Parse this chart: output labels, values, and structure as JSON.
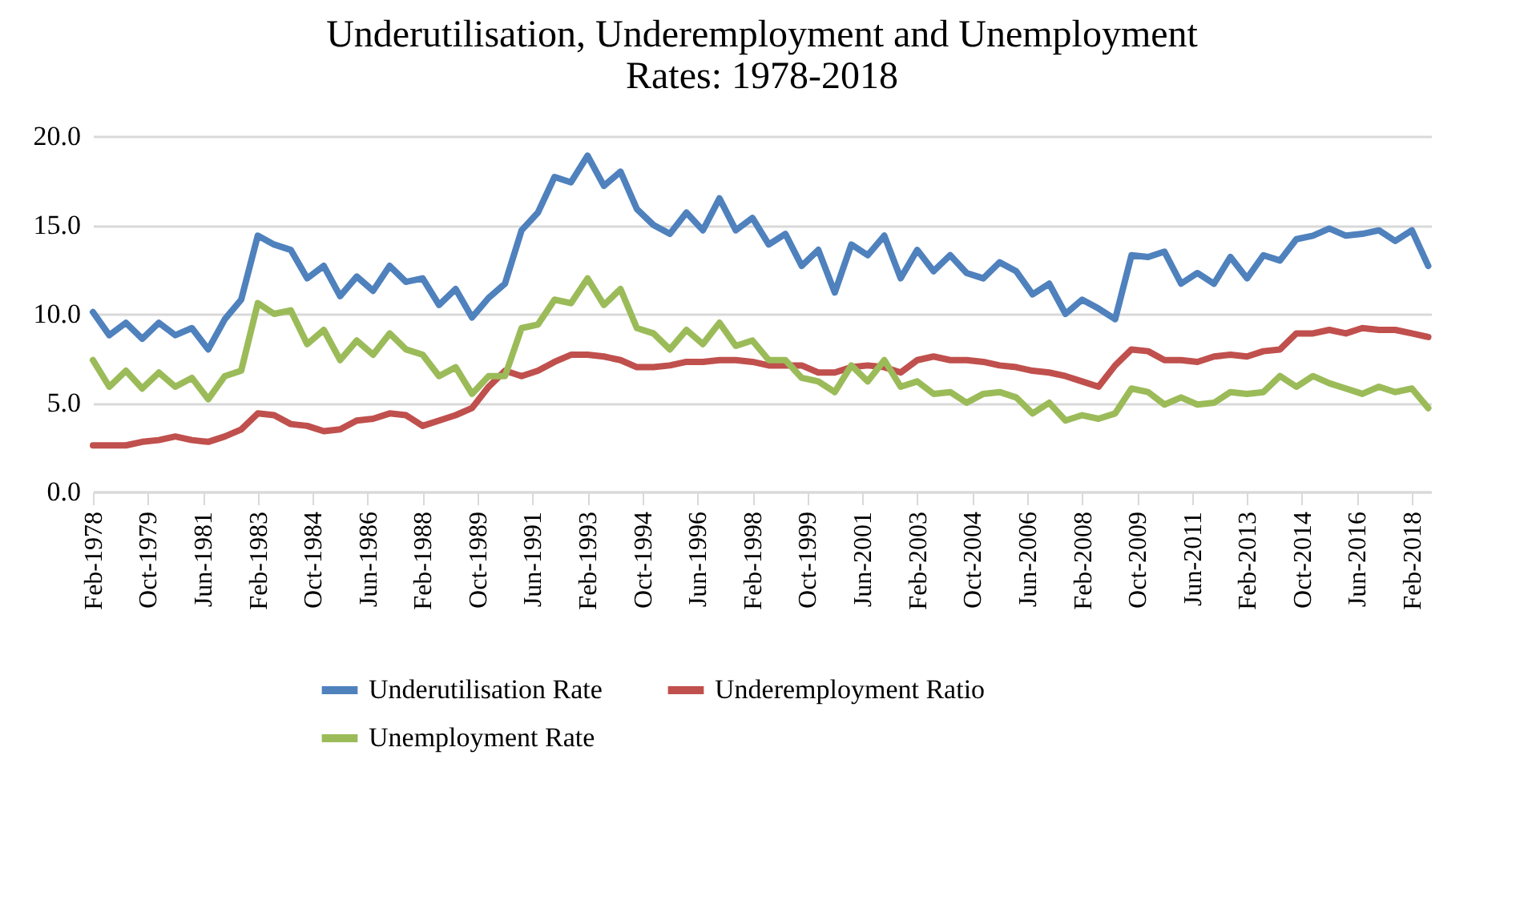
{
  "chart_data": {
    "type": "line",
    "title": "Underutilisation, Underemployment and Unemployment Rates: 1978-2018",
    "x": [
      "1978-02",
      "1978-08",
      "1979-02",
      "1979-08",
      "1980-02",
      "1980-08",
      "1981-02",
      "1981-08",
      "1982-02",
      "1982-08",
      "1983-02",
      "1983-08",
      "1984-02",
      "1984-08",
      "1985-02",
      "1985-08",
      "1986-02",
      "1986-08",
      "1987-02",
      "1987-08",
      "1988-02",
      "1988-08",
      "1989-02",
      "1989-08",
      "1990-02",
      "1990-08",
      "1991-02",
      "1991-08",
      "1992-02",
      "1992-08",
      "1993-02",
      "1993-08",
      "1994-02",
      "1994-08",
      "1995-02",
      "1995-08",
      "1996-02",
      "1996-08",
      "1997-02",
      "1997-08",
      "1998-02",
      "1998-08",
      "1999-02",
      "1999-08",
      "2000-02",
      "2000-08",
      "2001-02",
      "2001-08",
      "2002-02",
      "2002-08",
      "2003-02",
      "2003-08",
      "2004-02",
      "2004-08",
      "2005-02",
      "2005-08",
      "2006-02",
      "2006-08",
      "2007-02",
      "2007-08",
      "2008-02",
      "2008-08",
      "2009-02",
      "2009-08",
      "2010-02",
      "2010-08",
      "2011-02",
      "2011-08",
      "2012-02",
      "2012-08",
      "2013-02",
      "2013-08",
      "2014-02",
      "2014-08",
      "2015-02",
      "2015-08",
      "2016-02",
      "2016-08",
      "2017-02",
      "2017-08",
      "2018-02",
      "2018-08"
    ],
    "series": [
      {
        "name": "Underutilisation Rate",
        "color": "#4f81bd",
        "values": [
          10.1,
          8.8,
          9.5,
          8.6,
          9.5,
          8.8,
          9.2,
          8.0,
          9.7,
          10.8,
          14.4,
          13.9,
          13.6,
          12.0,
          12.7,
          11.0,
          12.1,
          11.3,
          12.7,
          11.8,
          12.0,
          10.5,
          11.4,
          9.8,
          10.9,
          11.7,
          14.7,
          15.7,
          17.7,
          17.4,
          18.9,
          17.2,
          18.0,
          15.9,
          15.0,
          14.5,
          15.7,
          14.7,
          16.5,
          14.7,
          15.4,
          13.9,
          14.5,
          12.7,
          13.6,
          11.2,
          13.9,
          13.3,
          14.4,
          12.0,
          13.6,
          12.4,
          13.3,
          12.3,
          12.0,
          12.9,
          12.4,
          11.1,
          11.7,
          10.0,
          10.8,
          10.3,
          9.7,
          13.3,
          13.2,
          13.5,
          11.7,
          12.3,
          11.7,
          13.2,
          12.0,
          13.3,
          13.0,
          14.2,
          14.4,
          14.8,
          14.4,
          14.5,
          14.7,
          14.1,
          14.7,
          12.7
        ]
      },
      {
        "name": "Underemployment Ratio",
        "color": "#c0504d",
        "values": [
          2.6,
          2.6,
          2.6,
          2.8,
          2.9,
          3.1,
          2.9,
          2.8,
          3.1,
          3.5,
          4.4,
          4.3,
          3.8,
          3.7,
          3.4,
          3.5,
          4.0,
          4.1,
          4.4,
          4.3,
          3.7,
          4.0,
          4.3,
          4.7,
          5.9,
          6.8,
          6.5,
          6.8,
          7.3,
          7.7,
          7.7,
          7.6,
          7.4,
          7.0,
          7.0,
          7.1,
          7.3,
          7.3,
          7.4,
          7.4,
          7.3,
          7.1,
          7.1,
          7.1,
          6.7,
          6.7,
          7.0,
          7.1,
          7.0,
          6.7,
          7.4,
          7.6,
          7.4,
          7.4,
          7.3,
          7.1,
          7.0,
          6.8,
          6.7,
          6.5,
          6.2,
          5.9,
          7.1,
          8.0,
          7.9,
          7.4,
          7.4,
          7.3,
          7.6,
          7.7,
          7.6,
          7.9,
          8.0,
          8.9,
          8.9,
          9.1,
          8.9,
          9.2,
          9.1,
          9.1,
          8.9,
          8.7
        ]
      },
      {
        "name": "Unemployment Rate",
        "color": "#9bbb59",
        "values": [
          7.4,
          5.9,
          6.8,
          5.8,
          6.7,
          5.9,
          6.4,
          5.2,
          6.5,
          6.8,
          10.6,
          10.0,
          10.2,
          8.3,
          9.1,
          7.4,
          8.5,
          7.7,
          8.9,
          8.0,
          7.7,
          6.5,
          7.0,
          5.5,
          6.5,
          6.5,
          9.2,
          9.4,
          10.8,
          10.6,
          12.0,
          10.5,
          11.4,
          9.2,
          8.9,
          8.0,
          9.1,
          8.3,
          9.5,
          8.2,
          8.5,
          7.4,
          7.4,
          6.4,
          6.2,
          5.6,
          7.1,
          6.2,
          7.4,
          5.9,
          6.2,
          5.5,
          5.6,
          5.0,
          5.5,
          5.6,
          5.3,
          4.4,
          5.0,
          4.0,
          4.3,
          4.1,
          4.4,
          5.8,
          5.6,
          4.9,
          5.3,
          4.9,
          5.0,
          5.6,
          5.5,
          5.6,
          6.5,
          5.9,
          6.5,
          6.1,
          5.8,
          5.5,
          5.9,
          5.6,
          5.8,
          4.7
        ]
      }
    ],
    "xlim": [
      "1978-02",
      "2018-09"
    ],
    "xticks": [
      {
        "value": "1978-02",
        "label": "Feb-1978"
      },
      {
        "value": "1979-10",
        "label": "Oct-1979"
      },
      {
        "value": "1981-06",
        "label": "Jun-1981"
      },
      {
        "value": "1983-02",
        "label": "Feb-1983"
      },
      {
        "value": "1984-10",
        "label": "Oct-1984"
      },
      {
        "value": "1986-06",
        "label": "Jun-1986"
      },
      {
        "value": "1988-02",
        "label": "Feb-1988"
      },
      {
        "value": "1989-10",
        "label": "Oct-1989"
      },
      {
        "value": "1991-06",
        "label": "Jun-1991"
      },
      {
        "value": "1993-02",
        "label": "Feb-1993"
      },
      {
        "value": "1994-10",
        "label": "Oct-1994"
      },
      {
        "value": "1996-06",
        "label": "Jun-1996"
      },
      {
        "value": "1998-02",
        "label": "Feb-1998"
      },
      {
        "value": "1999-10",
        "label": "Oct-1999"
      },
      {
        "value": "2001-06",
        "label": "Jun-2001"
      },
      {
        "value": "2003-02",
        "label": "Feb-2003"
      },
      {
        "value": "2004-10",
        "label": "Oct-2004"
      },
      {
        "value": "2006-06",
        "label": "Jun-2006"
      },
      {
        "value": "2008-02",
        "label": "Feb-2008"
      },
      {
        "value": "2009-10",
        "label": "Oct-2009"
      },
      {
        "value": "2011-06",
        "label": "Jun-2011"
      },
      {
        "value": "2013-02",
        "label": "Feb-2013"
      },
      {
        "value": "2014-10",
        "label": "Oct-2014"
      },
      {
        "value": "2016-06",
        "label": "Jun-2016"
      },
      {
        "value": "2018-02",
        "label": "Feb-2018"
      }
    ],
    "ylim": [
      0,
      20
    ],
    "yticks": [
      {
        "value": 0,
        "label": "0.0"
      },
      {
        "value": 5,
        "label": "5.0"
      },
      {
        "value": 10,
        "label": "10.0"
      },
      {
        "value": 15,
        "label": "15.0"
      },
      {
        "value": 20,
        "label": "20.0"
      }
    ],
    "grid": "y",
    "legend": "bottom",
    "marker": "none",
    "line_style": "solid"
  }
}
